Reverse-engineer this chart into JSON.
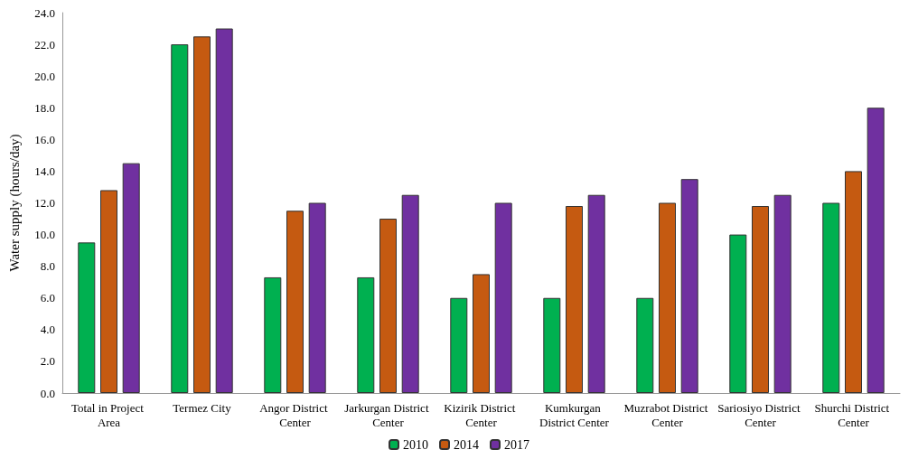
{
  "chart_data": {
    "type": "bar",
    "ylabel": "Water supply (hours/day)",
    "categories": [
      "Total in Project Area",
      "Termez City",
      "Angor District Center",
      "Jarkurgan District Center",
      "Kizirik District Center",
      "Kumkurgan District Center",
      "Muzrabot District Center",
      "Sariosiyo District Center",
      "Shurchi District Center"
    ],
    "series": [
      {
        "name": "2010",
        "color": "#00b050",
        "values": [
          9.5,
          22.0,
          7.3,
          7.3,
          6.0,
          6.0,
          6.0,
          10.0,
          12.0
        ]
      },
      {
        "name": "2014",
        "color": "#c55a11",
        "values": [
          12.8,
          22.5,
          11.5,
          11.0,
          7.5,
          11.8,
          12.0,
          11.8,
          14.0
        ]
      },
      {
        "name": "2017",
        "color": "#7030a0",
        "values": [
          14.5,
          23.0,
          12.0,
          12.5,
          12.0,
          12.5,
          13.5,
          12.5,
          18.0
        ]
      }
    ],
    "ylim": [
      0,
      24
    ],
    "yticks": [
      {
        "value": 0,
        "label": "0.0"
      },
      {
        "value": 2,
        "label": "2.0"
      },
      {
        "value": 4,
        "label": "4.0"
      },
      {
        "value": 6,
        "label": "6.0"
      },
      {
        "value": 8,
        "label": "8.0"
      },
      {
        "value": 10,
        "label": "10.0"
      },
      {
        "value": 12,
        "label": "12.0"
      },
      {
        "value": 14,
        "label": "14.0"
      },
      {
        "value": 16,
        "label": "16.0"
      },
      {
        "value": 18,
        "label": "18.0"
      },
      {
        "value": 20,
        "label": "20.0"
      },
      {
        "value": 22,
        "label": "22.0"
      },
      {
        "value": 24,
        "label": "24.0"
      }
    ],
    "grid": false,
    "legend": "bottom"
  }
}
